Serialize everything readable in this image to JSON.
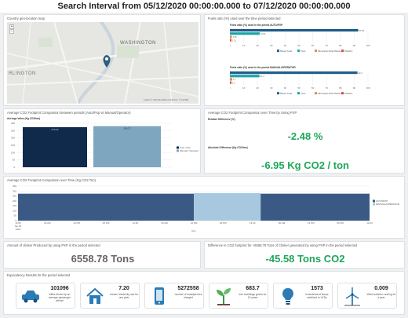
{
  "header": {
    "title": "Search Interval from 05/12/2020 00:00:00.000 to 07/12/2020 00:00:00.000"
  },
  "map": {
    "title": "Country geo-location map",
    "labels": [
      "WASHINGTON",
      "RLINGTON"
    ],
    "zoom_in": "+",
    "zoom_out": "−",
    "attribution": "Leaflet | © OpenStreetMap contributors, © CartoDB"
  },
  "fuels": {
    "title": "Fuels ratio (%) used over the time period selected",
    "chart1_title": "Fuels ratio (%) used in the period AUTO/PXP",
    "chart2_title": "Fuels ratio (%) used in the period MANUAL/OPERATOR",
    "legend": [
      "Mixed Coal",
      "Tires",
      "Municipal Solid Waste",
      "Plastics"
    ],
    "colors": [
      "#1f5f8b",
      "#1aa5a5",
      "#e08a4a",
      "#d64545"
    ]
  },
  "avg_co2": {
    "title": "Average CO2 Footprint Comparison between periods (Auto/Pxp vs Manual/Operator)",
    "subtitle": "Average Value (Kg CO2/ton)",
    "legend": [
      "Auto / Pxp",
      "Manual / Operator"
    ]
  },
  "avg_time": {
    "title": "Average CO2 Footprint Comparison over Time by Using PXP",
    "rel_label": "Relative Difference (%)",
    "rel_value": "-2.48 %",
    "abs_label": "Absolute Difference (Kg CO2/ton)",
    "abs_value": "-6.95 Kg CO2 / ton"
  },
  "timeline": {
    "title": "Average CO2 Footprint Comparison over Time (Kg CO2 Ton)",
    "legend": [
      "AUTO/PXP",
      "MANUAL/OPERATOR"
    ],
    "xlabel": "time"
  },
  "clinker": {
    "title": "Amount of clinker Produced by using PXP in the period selected",
    "value": "6558.78 Tons"
  },
  "diff": {
    "title": "Difference in CO2 footprint for +6558.78 Tons of Clinker generated by using PXP in the period selected",
    "value": "-45.58 Tons CO2"
  },
  "equiv": {
    "title": "Equivalency Results for the period selected",
    "cards": [
      {
        "icon": "car-icon",
        "num": "101096",
        "desc": "Miles driven by an average passenger vehicle"
      },
      {
        "icon": "house-icon",
        "num": "7.20",
        "desc": "homes' electricity use for one year"
      },
      {
        "icon": "phone-icon",
        "num": "5272558",
        "desc": "number of smartphones charged"
      },
      {
        "icon": "seedling-icon",
        "num": "683.7",
        "desc": "tree seedlings grown for 10 years"
      },
      {
        "icon": "bulb-icon",
        "num": "1573",
        "desc": "incandescent lamps switched to LEDs"
      },
      {
        "icon": "wind-turbine-icon",
        "num": "0.009",
        "desc": "Wind turbines running for a year"
      }
    ]
  },
  "chart_data": [
    {
      "type": "bar",
      "title": "Fuels ratio (%) used in the period AUTO/PXP",
      "orientation": "horizontal",
      "series": [
        {
          "name": "Mixed Coal",
          "values": [
            92.93
          ]
        },
        {
          "name": "Tires",
          "values": [
            21.61
          ]
        },
        {
          "name": "Municipal Solid Waste",
          "values": [
            1.45
          ]
        },
        {
          "name": "Plastics",
          "values": [
            1.11
          ]
        }
      ],
      "xlim": [
        0,
        100
      ],
      "ticks": [
        "0",
        "10",
        "20",
        "30",
        "40",
        "50",
        "60",
        "70",
        "80",
        "90",
        "100"
      ]
    },
    {
      "type": "bar",
      "title": "Fuels ratio (%) used in the period MANUAL/OPERATOR",
      "orientation": "horizontal",
      "series": [
        {
          "name": "Mixed Coal",
          "values": [
            92.4
          ]
        },
        {
          "name": "Tires",
          "values": [
            21.4
          ]
        },
        {
          "name": "Municipal Solid Waste",
          "values": [
            1.7
          ]
        },
        {
          "name": "Plastics",
          "values": [
            1.1
          ]
        }
      ],
      "xlim": [
        0,
        100
      ],
      "ticks": [
        "0",
        "10",
        "20",
        "30",
        "40",
        "50",
        "60",
        "70",
        "80",
        "90",
        "100"
      ]
    },
    {
      "type": "bar",
      "title": "Average Value (Kg CO2/ton)",
      "categories": [
        "Auto / Pxp",
        "Manual / Operator"
      ],
      "values": [
        273.42,
        280.37
      ],
      "labels": [
        "273.42",
        "280.37"
      ],
      "ylim": [
        0,
        300
      ],
      "ticks": [
        "0",
        "50",
        "100",
        "150",
        "200",
        "250",
        "300"
      ],
      "colors": [
        "#0f2a4a",
        "#7fa6bf"
      ]
    },
    {
      "type": "area",
      "title": "Average CO2 Footprint Comparison over Time (Kg CO2 Ton)",
      "xlabel": "time",
      "x": [
        "12:00",
        "06 AM",
        "12 PM",
        "06 PM",
        "12:00",
        "06 AM",
        "12 PM",
        "06 PM",
        "12:00",
        "06 AM",
        "12 PM",
        "06 PM",
        "12:00"
      ],
      "first_tick_sub": [
        "Sat 05",
        "2020"
      ],
      "ylim": [
        0,
        350
      ],
      "ticks": [
        "0",
        "50",
        "100",
        "150",
        "200",
        "250",
        "300",
        "350"
      ],
      "series": [
        {
          "name": "AUTO/PXP",
          "color": "#3a5a85",
          "value": 273,
          "segments": [
            [
              0,
              0.5
            ],
            [
              0.69,
              1
            ]
          ]
        },
        {
          "name": "MANUAL/OPERATOR",
          "color": "#a8c8e0",
          "value": 280,
          "segments": [
            [
              0.5,
              0.69
            ]
          ]
        }
      ]
    }
  ]
}
